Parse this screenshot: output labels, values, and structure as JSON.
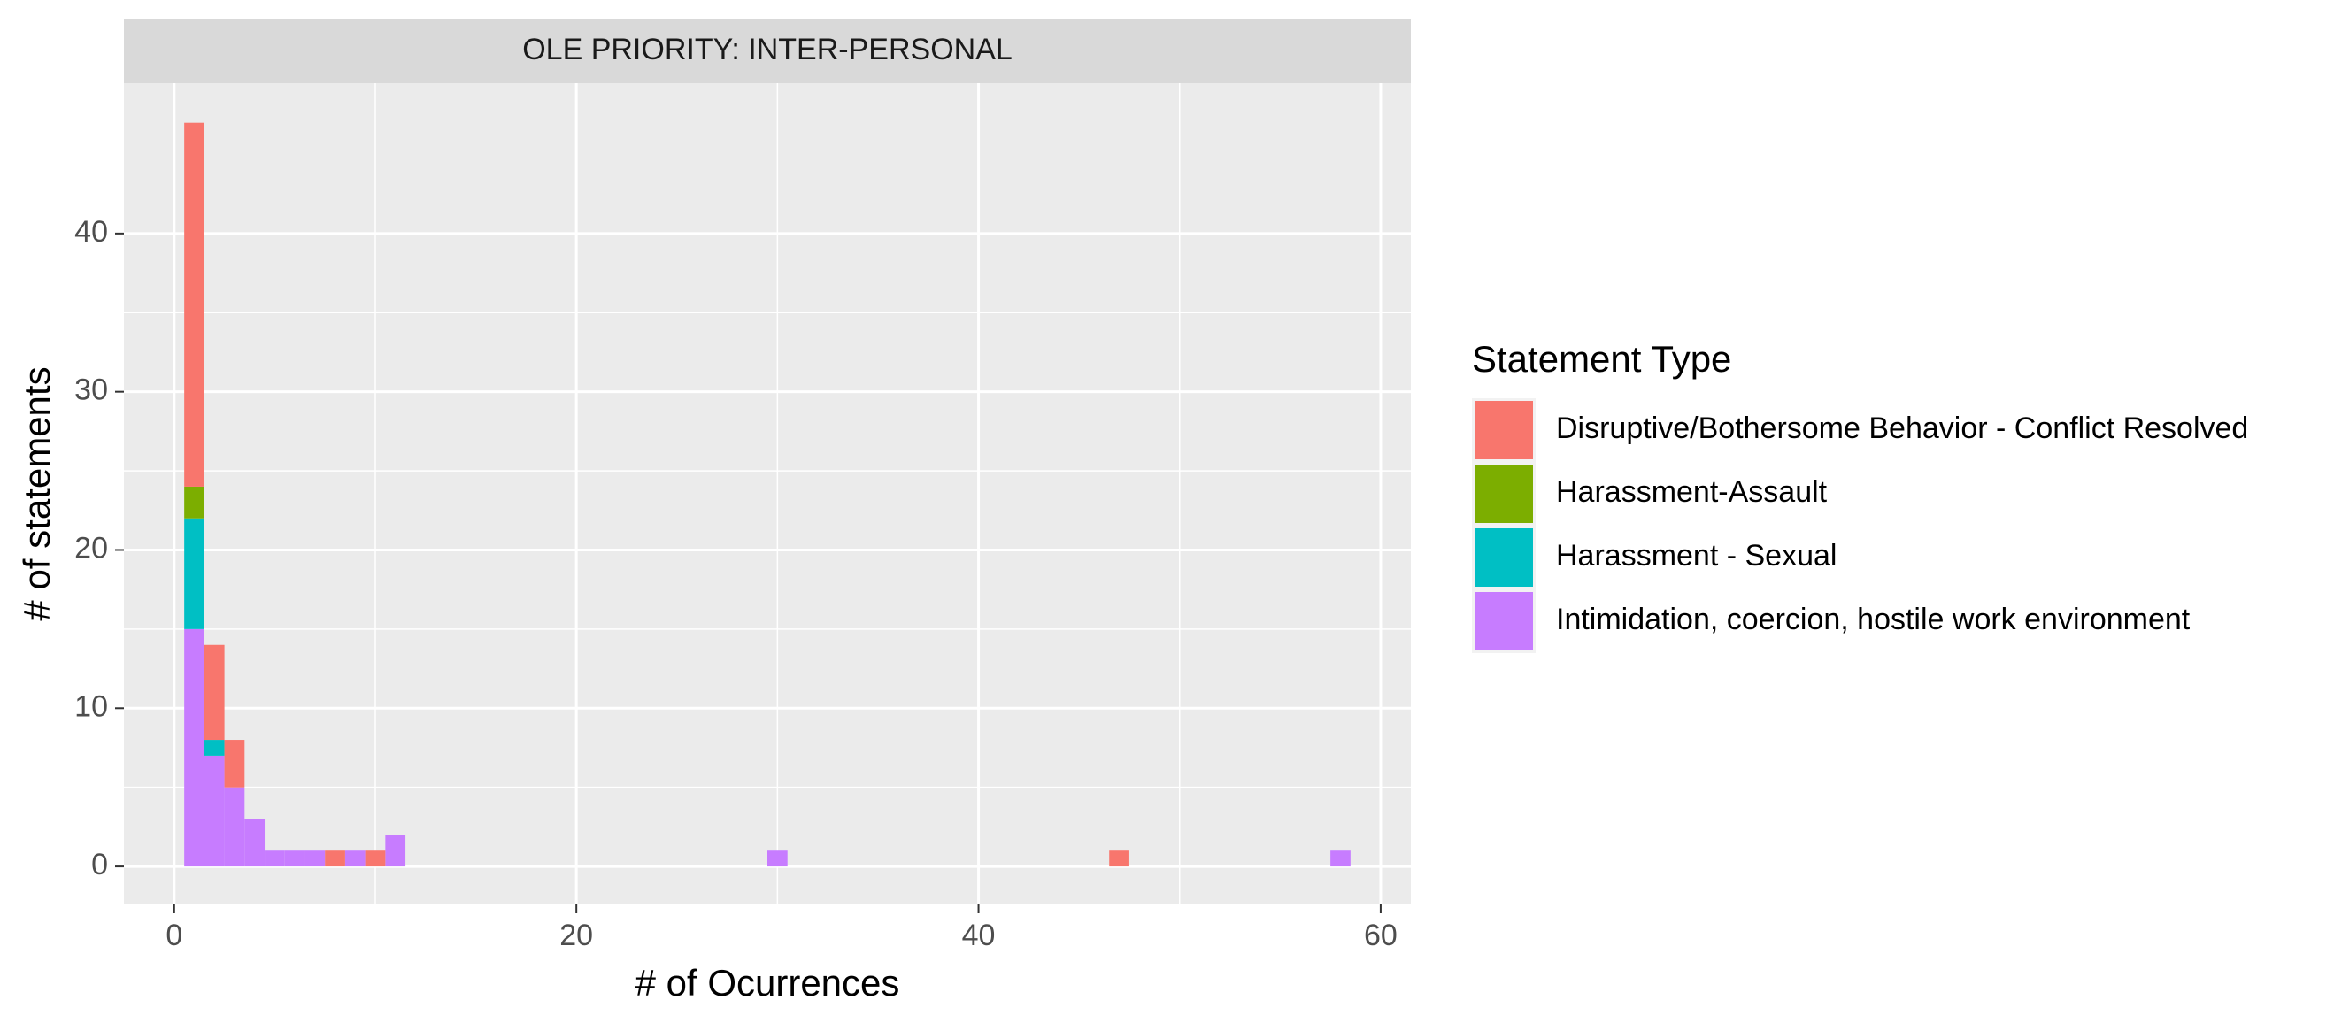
{
  "chart_data": {
    "type": "bar",
    "subtype": "stacked-histogram",
    "facet_title": "OLE PRIORITY: INTER-PERSONAL",
    "xlabel": "# of Ocurrences",
    "ylabel": "# of statements",
    "xlim": [
      -2.5,
      61.5
    ],
    "ylim": [
      -2.4,
      49.5
    ],
    "x_ticks": [
      0,
      20,
      40,
      60
    ],
    "y_ticks": [
      0,
      10,
      20,
      30,
      40
    ],
    "bin_width": 1,
    "grid": true,
    "legend": {
      "title": "Statement Type",
      "position": "right"
    },
    "series": [
      {
        "name": "Disruptive/Bothersome Behavior - Conflict Resolved",
        "color": "#F8766D",
        "x": [
          1,
          2,
          3,
          8,
          10,
          47
        ],
        "values": [
          23,
          6,
          3,
          1,
          1,
          1
        ]
      },
      {
        "name": "Harassment-Assault",
        "color": "#7CAE00",
        "x": [
          1
        ],
        "values": [
          2
        ]
      },
      {
        "name": "Harassment - Sexual",
        "color": "#00BFC4",
        "x": [
          1,
          2
        ],
        "values": [
          7,
          1
        ]
      },
      {
        "name": "Intimidation, coercion, hostile work environment",
        "color": "#C77CFF",
        "x": [
          1,
          2,
          3,
          4,
          5,
          6,
          7,
          9,
          11,
          30,
          58
        ],
        "values": [
          15,
          7,
          5,
          3,
          1,
          1,
          1,
          1,
          2,
          1,
          1
        ]
      }
    ]
  }
}
